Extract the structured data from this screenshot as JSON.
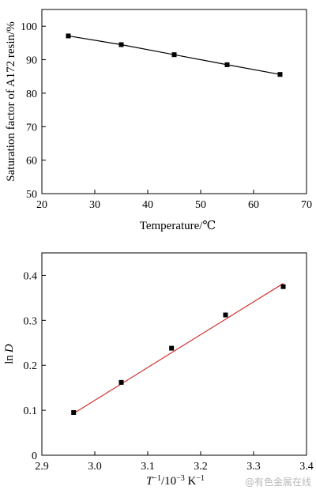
{
  "chart_data": [
    {
      "type": "line",
      "title": "",
      "xlabel": "Temperature/℃",
      "ylabel": "Saturation factor of A172 resin/%",
      "xlim": [
        20,
        70
      ],
      "ylim": [
        50,
        105
      ],
      "xticks": [
        20,
        30,
        40,
        50,
        60,
        70
      ],
      "yticks": [
        50,
        60,
        70,
        80,
        90,
        100
      ],
      "xtick_labels": [
        "20",
        "30",
        "40",
        "50",
        "60",
        "70"
      ],
      "ytick_labels": [
        "50",
        "60",
        "70",
        "80",
        "90",
        "100"
      ],
      "grid": false,
      "series": [
        {
          "x": [
            25,
            35,
            45,
            55,
            65
          ],
          "y": [
            97.1,
            94.5,
            91.5,
            88.5,
            85.6
          ],
          "marker": "square",
          "color": "#000000",
          "line": "connected"
        }
      ]
    },
    {
      "type": "scatter",
      "title": "",
      "xlabel_parts": [
        "T",
        "−1",
        "/10",
        "−3",
        " K",
        "−1"
      ],
      "ylabel_parts": [
        "ln",
        "D"
      ],
      "xlim": [
        2.9,
        3.4
      ],
      "ylim": [
        0,
        0.45
      ],
      "xticks": [
        2.9,
        3.0,
        3.1,
        3.2,
        3.3,
        3.4
      ],
      "yticks": [
        0,
        0.1,
        0.2,
        0.3,
        0.4
      ],
      "xtick_labels": [
        "2.9",
        "3.0",
        "3.1",
        "3.2",
        "3.3",
        "3.4"
      ],
      "ytick_labels": [
        "0",
        "0.1",
        "0.2",
        "0.3",
        "0.4"
      ],
      "grid": false,
      "series": [
        {
          "x": [
            2.96,
            3.05,
            3.145,
            3.247,
            3.356
          ],
          "y": [
            0.095,
            0.162,
            0.238,
            0.312,
            0.375
          ],
          "marker": "square",
          "color": "#000000"
        }
      ],
      "fit_line": {
        "x": [
          2.96,
          3.356
        ],
        "y": [
          0.093,
          0.382
        ],
        "color": "#d0312d"
      }
    }
  ],
  "watermark": "@有色金属在线"
}
